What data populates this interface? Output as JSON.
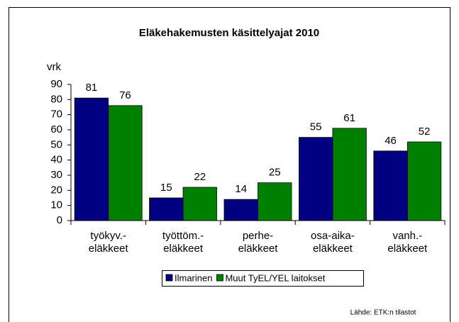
{
  "chart_data": {
    "type": "bar",
    "title": "Eläkehakemusten käsittelyajat 2010",
    "y_label": "vrk",
    "categories": [
      [
        "työkyv.-",
        "eläkkeet"
      ],
      [
        "työttöm.-",
        "eläkkeet"
      ],
      [
        "perhe-",
        "eläkkeet"
      ],
      [
        "osa-aika-",
        "eläkkeet"
      ],
      [
        "vanh.-",
        "eläkkeet"
      ]
    ],
    "series": [
      {
        "name": "Ilmarinen",
        "color": "#000080",
        "values": [
          81,
          15,
          14,
          55,
          46
        ]
      },
      {
        "name": "Muut TyEL/YEL laitokset",
        "color": "#008000",
        "values": [
          76,
          22,
          25,
          61,
          52
        ]
      }
    ],
    "ylim": [
      0,
      90
    ],
    "yticks": [
      0,
      10,
      20,
      30,
      40,
      50,
      60,
      70,
      80,
      90
    ],
    "legend": "bottom",
    "source": "Lähde: ETK:n tilastot"
  }
}
